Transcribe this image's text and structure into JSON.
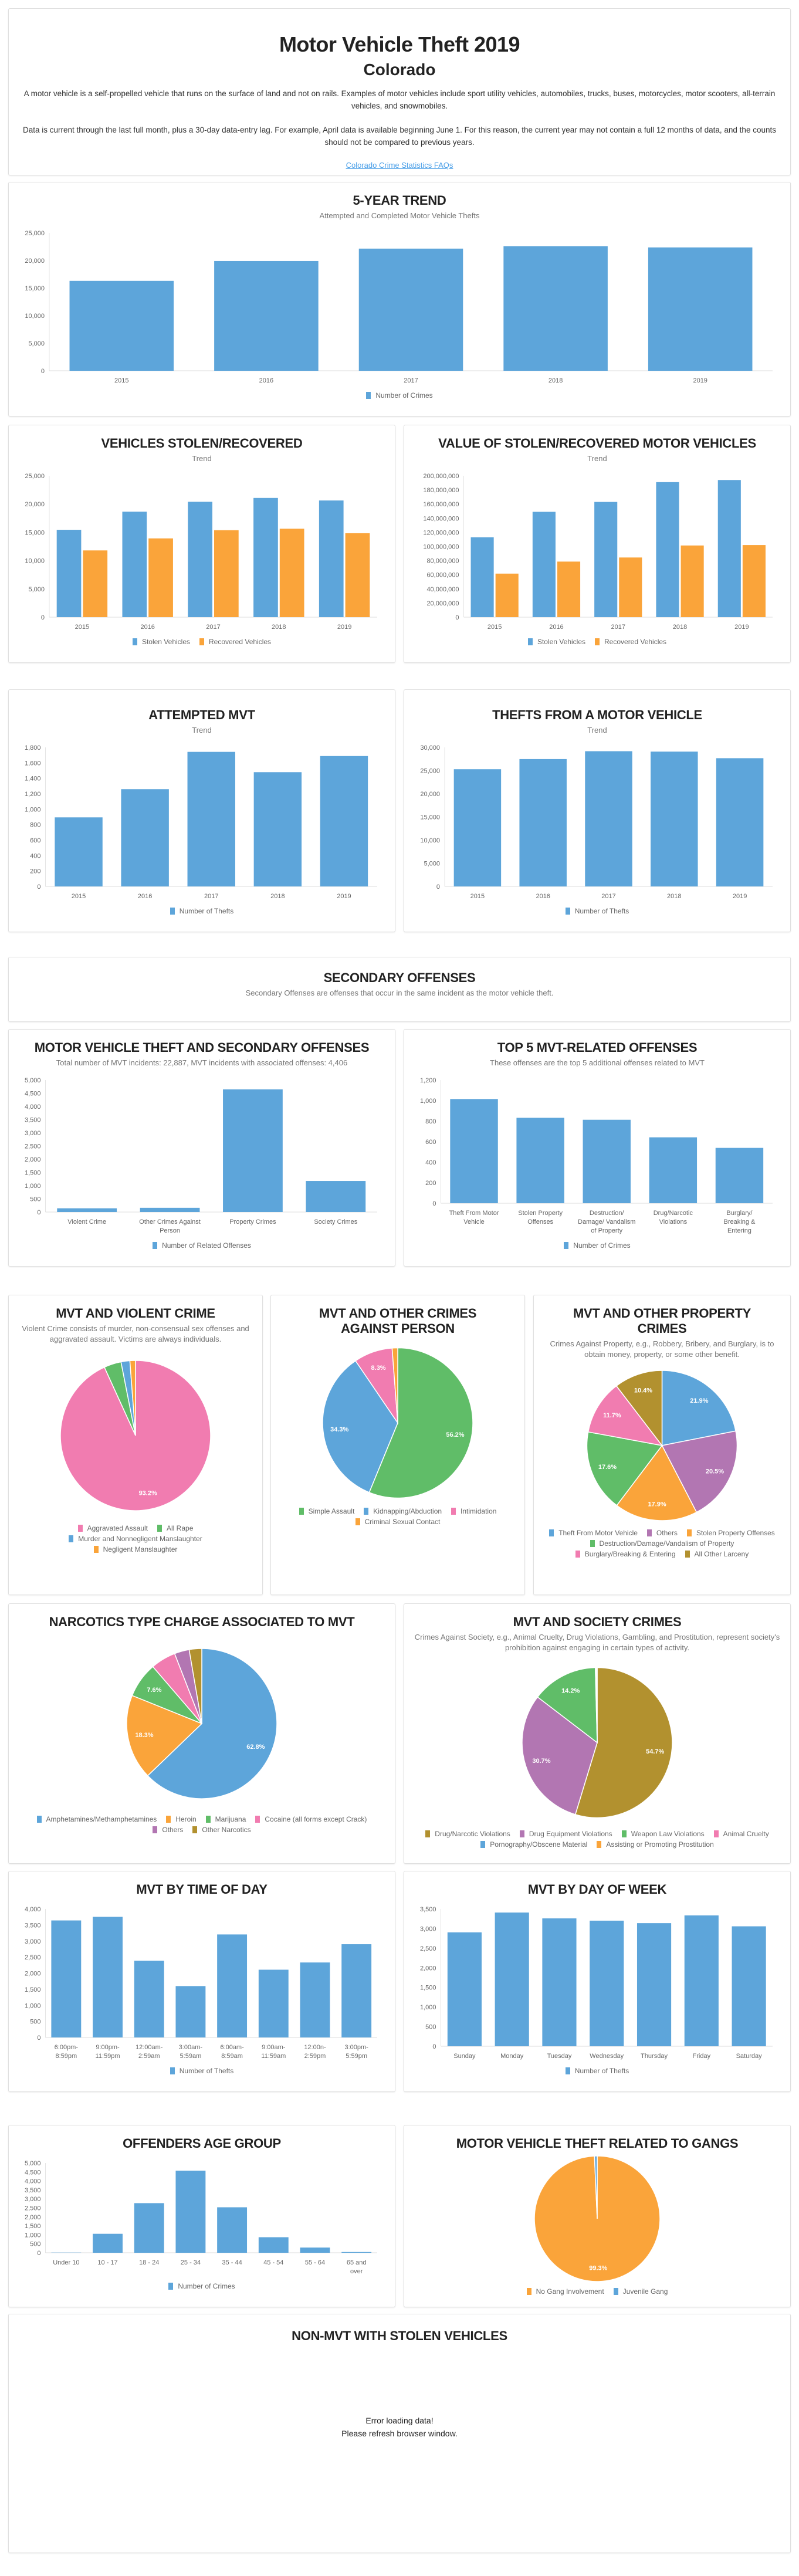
{
  "header": {
    "title": "Motor Vehicle Theft 2019",
    "state": "Colorado",
    "paragraph1": "A motor vehicle is a self-propelled vehicle that runs on the surface of land and not on rails. Examples of motor vehicles include sport utility vehicles, automobiles, trucks, buses, motorcycles, motor scooters, all-terrain vehicles, and snowmobiles.",
    "paragraph2": "Data is current through the last full month, plus a 30-day data-entry lag. For example, April data is available beginning June 1. For this reason, the current year may not contain a full 12 months of data, and the counts should not be compared to previous years.",
    "faq_link": "Colorado Crime Statistics FAQs"
  },
  "secondary_offenses": {
    "title": "SECONDARY OFFENSES",
    "subtitle": "Secondary Offenses are offenses that occur in the same incident as the motor vehicle theft."
  },
  "non_mvt": {
    "title": "NON-MVT WITH STOLEN VEHICLES",
    "error_line1": "Error loading data!",
    "error_line2": "Please refresh browser window."
  },
  "colors": {
    "blue": "#5da5da",
    "orange": "#faa43a",
    "green": "#60bd68",
    "pink": "#f17cb0",
    "purple": "#b276b2",
    "olive": "#b2912f"
  },
  "chart_data": [
    {
      "type": "bar",
      "title": "5-YEAR TREND",
      "subtitle": "Attempted and Completed Motor Vehicle Thefts",
      "categories": [
        "2015",
        "2016",
        "2017",
        "2018",
        "2019"
      ],
      "series": [
        {
          "name": "Number of Crimes",
          "color": "#5da5da",
          "values": [
            16300,
            19900,
            22150,
            22600,
            22370
          ]
        }
      ],
      "ylim": [
        0,
        25000
      ],
      "ystep": 5000,
      "legend": "bottom"
    },
    {
      "type": "bar",
      "title": "VEHICLES STOLEN/RECOVERED",
      "subtitle": "Trend",
      "categories": [
        "2015",
        "2016",
        "2017",
        "2018",
        "2019"
      ],
      "series": [
        {
          "name": "Stolen Vehicles",
          "color": "#5da5da",
          "values": [
            15450,
            18650,
            20400,
            21080,
            20630
          ]
        },
        {
          "name": "Recovered Vehicles",
          "color": "#faa43a",
          "values": [
            11800,
            13930,
            15380,
            15640,
            14840
          ]
        }
      ],
      "ylim": [
        0,
        25000
      ],
      "ystep": 5000,
      "legend": "bottom"
    },
    {
      "type": "bar",
      "title": "VALUE OF STOLEN/RECOVERED MOTOR VEHICLES",
      "subtitle": "Trend",
      "categories": [
        "2015",
        "2016",
        "2017",
        "2018",
        "2019"
      ],
      "series": [
        {
          "name": "Stolen Vehicles",
          "color": "#5da5da",
          "values": [
            113000000,
            149000000,
            163000000,
            191000000,
            194000000
          ]
        },
        {
          "name": "Recovered Vehicles",
          "color": "#faa43a",
          "values": [
            61600000,
            78600000,
            84400000,
            101400000,
            102000000
          ]
        }
      ],
      "ylim": [
        0,
        200000000
      ],
      "ystep": 20000000,
      "legend": "bottom"
    },
    {
      "type": "bar",
      "title": "ATTEMPTED MVT",
      "subtitle": "Trend",
      "categories": [
        "2015",
        "2016",
        "2017",
        "2018",
        "2019"
      ],
      "series": [
        {
          "name": "Number of Thefts",
          "color": "#5da5da",
          "values": [
            894,
            1259,
            1742,
            1479,
            1688
          ]
        }
      ],
      "ylim": [
        0,
        1800
      ],
      "ystep": 200,
      "legend": "bottom"
    },
    {
      "type": "bar",
      "title": "THEFTS FROM A MOTOR VEHICLE",
      "subtitle": "Trend",
      "categories": [
        "2015",
        "2016",
        "2017",
        "2018",
        "2019"
      ],
      "series": [
        {
          "name": "Number of Thefts",
          "color": "#5da5da",
          "values": [
            25290,
            27480,
            29180,
            29090,
            27670
          ]
        }
      ],
      "ylim": [
        0,
        30000
      ],
      "ystep": 5000,
      "legend": "bottom"
    },
    {
      "type": "bar",
      "title": "MOTOR VEHICLE THEFT AND SECONDARY OFFENSES",
      "subtitle": "Total number of MVT incidents: 22,887, MVT incidents with associated offenses: 4,406",
      "categories": [
        "Violent Crime",
        "Other Crimes Against Person",
        "Property Crimes",
        "Society Crimes"
      ],
      "series": [
        {
          "name": "Number of Related Offenses",
          "color": "#5da5da",
          "values": [
            142,
            159,
            4646,
            1177
          ]
        }
      ],
      "ylim": [
        0,
        5000
      ],
      "ystep": 500,
      "legend": "bottom"
    },
    {
      "type": "bar",
      "title": "TOP 5 MVT-RELATED OFFENSES",
      "subtitle": "These offenses are the top 5 additional offenses related to MVT",
      "categories": [
        "Theft From Motor Vehicle",
        "Stolen Property Offenses",
        "Destruction/ Damage/ Vandalism of Property",
        "Drug/Narcotic Violations",
        "Burglary/ Breaking & Entering"
      ],
      "series": [
        {
          "name": "Number of Crimes",
          "color": "#5da5da",
          "values": [
            1015,
            832,
            813,
            642,
            539
          ]
        }
      ],
      "ylim": [
        0,
        1200
      ],
      "ystep": 200,
      "legend": "bottom"
    },
    {
      "type": "pie",
      "title": "MVT AND VIOLENT CRIME",
      "subtitle": "Violent Crime consists of murder, non-consensual sex offenses and aggravated assault. Victims are always individuals.",
      "slices": [
        {
          "name": "Aggravated Assault",
          "color": "#f17cb0",
          "value": 93.2
        },
        {
          "name": "All Rape",
          "color": "#60bd68",
          "value": 3.7
        },
        {
          "name": "Murder and Nonnegligent Manslaughter",
          "color": "#5da5da",
          "value": 1.9
        },
        {
          "name": "Negligent Manslaughter",
          "color": "#faa43a",
          "value": 1.2
        }
      ],
      "legend": "bottom"
    },
    {
      "type": "pie",
      "title": "MVT AND OTHER CRIMES AGAINST PERSON",
      "subtitle": "",
      "slices": [
        {
          "name": "Simple Assault",
          "color": "#60bd68",
          "value": 56.2
        },
        {
          "name": "Kidnapping/Abduction",
          "color": "#5da5da",
          "value": 34.3
        },
        {
          "name": "Intimidation",
          "color": "#f17cb0",
          "value": 8.3
        },
        {
          "name": "Criminal Sexual Contact",
          "color": "#faa43a",
          "value": 1.2
        }
      ],
      "legend": "bottom"
    },
    {
      "type": "pie",
      "title": "MVT AND OTHER PROPERTY CRIMES",
      "subtitle": "Crimes Against Property, e.g., Robbery, Bribery, and Burglary, is to obtain money, property, or some other benefit.",
      "slices": [
        {
          "name": "Theft From Motor Vehicle",
          "color": "#5da5da",
          "value": 21.9
        },
        {
          "name": "Others",
          "color": "#b276b2",
          "value": 20.5
        },
        {
          "name": "Stolen Property Offenses",
          "color": "#faa43a",
          "value": 17.9
        },
        {
          "name": "Destruction/Damage/Vandalism of Property",
          "color": "#60bd68",
          "value": 17.6
        },
        {
          "name": "Burglary/Breaking & Entering",
          "color": "#f17cb0",
          "value": 11.7
        },
        {
          "name": "All Other Larceny",
          "color": "#b2912f",
          "value": 10.4
        }
      ],
      "legend": "bottom"
    },
    {
      "type": "pie",
      "title": "NARCOTICS TYPE CHARGE ASSOCIATED TO MVT",
      "subtitle": "",
      "slices": [
        {
          "name": "Amphetamines/Methamphetamines",
          "color": "#5da5da",
          "value": 62.8
        },
        {
          "name": "Heroin",
          "color": "#faa43a",
          "value": 18.3
        },
        {
          "name": "Marijuana",
          "color": "#60bd68",
          "value": 7.6
        },
        {
          "name": "Cocaine (all forms except Crack)",
          "color": "#f17cb0",
          "value": 5.4
        },
        {
          "name": "Others",
          "color": "#b276b2",
          "value": 3.2
        },
        {
          "name": "Other Narcotics",
          "color": "#b2912f",
          "value": 2.7
        }
      ],
      "legend": "bottom"
    },
    {
      "type": "pie",
      "title": "MVT AND SOCIETY CRIMES",
      "subtitle": "Crimes Against Society, e.g., Animal Cruelty, Drug Violations, Gambling, and Prostitution, represent society's prohibition against engaging in certain types of activity.",
      "slices": [
        {
          "name": "Drug/Narcotic Violations",
          "color": "#b2912f",
          "value": 54.7
        },
        {
          "name": "Drug Equipment Violations",
          "color": "#b276b2",
          "value": 30.7
        },
        {
          "name": "Weapon Law Violations",
          "color": "#60bd68",
          "value": 14.2
        },
        {
          "name": "Animal Cruelty",
          "color": "#f17cb0",
          "value": 0.2
        },
        {
          "name": "Pornography/Obscene Material",
          "color": "#5da5da",
          "value": 0.1
        },
        {
          "name": "Assisting or Promoting Prostitution",
          "color": "#faa43a",
          "value": 0.1
        }
      ],
      "legend": "bottom"
    },
    {
      "type": "bar",
      "title": "MVT BY TIME OF DAY",
      "subtitle": "",
      "categories": [
        "6:00pm- 8:59pm",
        "9:00pm- 11:59pm",
        "12:00am- 2:59am",
        "3:00am- 5:59am",
        "6:00am- 8:59am",
        "9:00am- 11:59am",
        "12:00n- 2:59pm",
        "3:00pm- 5:59pm"
      ],
      "series": [
        {
          "name": "Number of Thefts",
          "color": "#5da5da",
          "values": [
            3643,
            3755,
            2387,
            1600,
            3207,
            2109,
            2334,
            2903
          ]
        }
      ],
      "ylim": [
        0,
        4000
      ],
      "ystep": 500,
      "legend": "bottom"
    },
    {
      "type": "bar",
      "title": "MVT BY DAY OF WEEK",
      "subtitle": "",
      "categories": [
        "Sunday",
        "Monday",
        "Tuesday",
        "Wednesday",
        "Thursday",
        "Friday",
        "Saturday"
      ],
      "series": [
        {
          "name": "Number of Thefts",
          "color": "#5da5da",
          "values": [
            2904,
            3409,
            3260,
            3202,
            3139,
            3336,
            3058
          ]
        }
      ],
      "ylim": [
        0,
        3500
      ],
      "ystep": 500,
      "legend": "bottom"
    },
    {
      "type": "bar",
      "title": "OFFENDERS AGE GROUP",
      "subtitle": "",
      "categories": [
        "Under 10",
        "10 - 17",
        "18 - 24",
        "25 - 34",
        "35 - 44",
        "45 - 54",
        "55 - 64",
        "65 and over"
      ],
      "series": [
        {
          "name": "Number of Crimes",
          "color": "#5da5da",
          "values": [
            10,
            1056,
            2764,
            4571,
            2533,
            866,
            289,
            41
          ]
        }
      ],
      "ylim": [
        0,
        5000
      ],
      "ystep": 500,
      "legend": "bottom"
    },
    {
      "type": "pie",
      "title": "MOTOR VEHICLE THEFT RELATED TO GANGS",
      "subtitle": "",
      "slices": [
        {
          "name": "No Gang Involvement",
          "color": "#faa43a",
          "value": 99.3
        },
        {
          "name": "Juvenile Gang",
          "color": "#5da5da",
          "value": 0.7
        }
      ],
      "legend": "bottom"
    }
  ]
}
